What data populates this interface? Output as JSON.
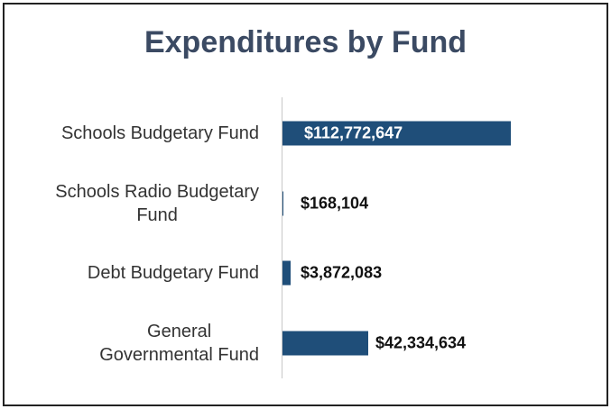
{
  "chart_data": {
    "type": "bar",
    "orientation": "horizontal",
    "title": "Expenditures by Fund",
    "categories": [
      "Schools Budgetary Fund",
      "Schools Radio Budgetary\nFund",
      "Debt Budgetary Fund",
      "General\nGovernmental Fund"
    ],
    "values": [
      112772647,
      168104,
      3872083,
      42334634
    ],
    "value_labels": [
      "$112,772,647",
      "$168,104",
      "$3,872,083",
      "$42,334,634"
    ],
    "color": "#1f4e79"
  }
}
